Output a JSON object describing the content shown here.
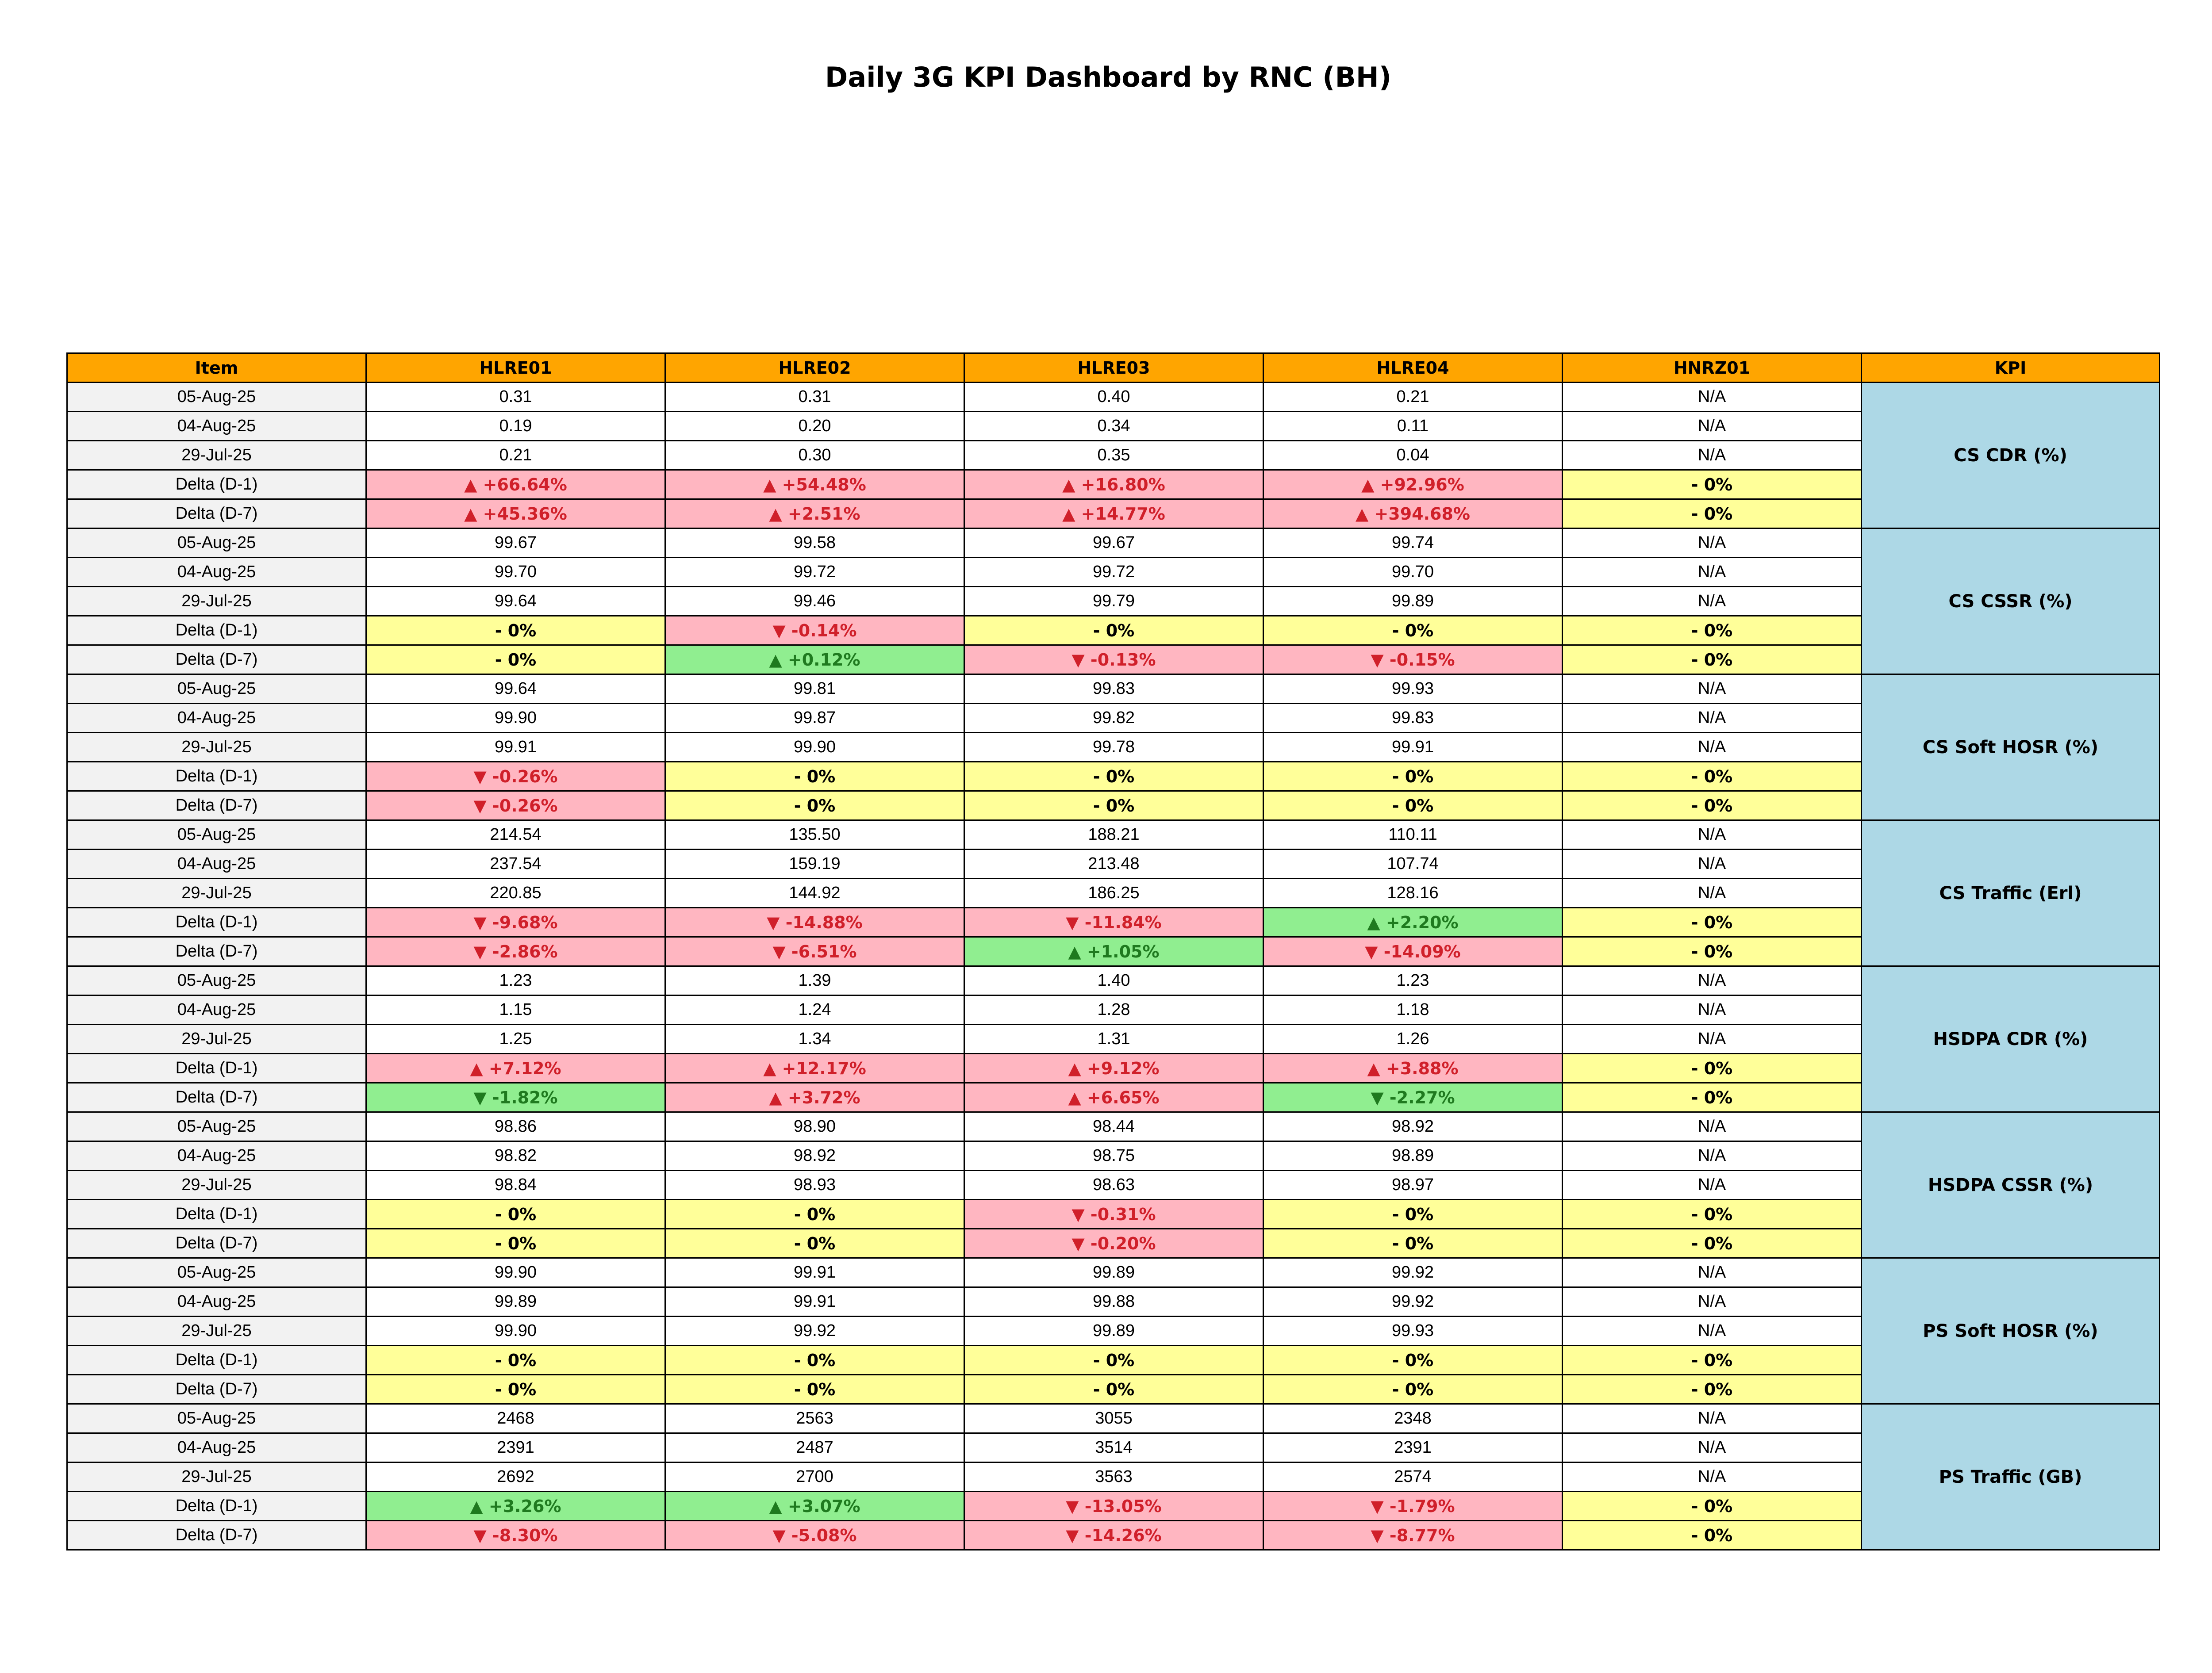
{
  "title": "Daily 3G KPI Dashboard by RNC (BH)",
  "headers": [
    "Item",
    "HLRE01",
    "HLRE02",
    "HLRE03",
    "HLRE04",
    "HNRZ01",
    "KPI"
  ],
  "colors": {
    "header": "#FFA500",
    "kpi": "#ADD8E6",
    "red_bg": "#FFB6C1",
    "green_bg": "#90EE90",
    "yellow_bg": "#FFFF99"
  },
  "groups": [
    {
      "kpi": "CS CDR (%)",
      "rows": [
        {
          "item": "05-Aug-25",
          "cells": [
            {
              "text": "0.31"
            },
            {
              "text": "0.31"
            },
            {
              "text": "0.40"
            },
            {
              "text": "0.21"
            },
            {
              "text": "N/A"
            }
          ]
        },
        {
          "item": "04-Aug-25",
          "cells": [
            {
              "text": "0.19"
            },
            {
              "text": "0.20"
            },
            {
              "text": "0.34"
            },
            {
              "text": "0.11"
            },
            {
              "text": "N/A"
            }
          ]
        },
        {
          "item": "29-Jul-25",
          "cells": [
            {
              "text": "0.21"
            },
            {
              "text": "0.30"
            },
            {
              "text": "0.35"
            },
            {
              "text": "0.04"
            },
            {
              "text": "N/A"
            }
          ]
        },
        {
          "item": "Delta (D-1)",
          "cells": [
            {
              "text": "▲ +66.64%",
              "status": "red"
            },
            {
              "text": "▲ +54.48%",
              "status": "red"
            },
            {
              "text": "▲ +16.80%",
              "status": "red"
            },
            {
              "text": "▲ +92.96%",
              "status": "red"
            },
            {
              "text": "- 0%",
              "status": "yellow"
            }
          ]
        },
        {
          "item": "Delta (D-7)",
          "cells": [
            {
              "text": "▲ +45.36%",
              "status": "red"
            },
            {
              "text": "▲ +2.51%",
              "status": "red"
            },
            {
              "text": "▲ +14.77%",
              "status": "red"
            },
            {
              "text": "▲ +394.68%",
              "status": "red"
            },
            {
              "text": "- 0%",
              "status": "yellow"
            }
          ]
        }
      ]
    },
    {
      "kpi": "CS CSSR (%)",
      "rows": [
        {
          "item": "05-Aug-25",
          "cells": [
            {
              "text": "99.67"
            },
            {
              "text": "99.58"
            },
            {
              "text": "99.67"
            },
            {
              "text": "99.74"
            },
            {
              "text": "N/A"
            }
          ]
        },
        {
          "item": "04-Aug-25",
          "cells": [
            {
              "text": "99.70"
            },
            {
              "text": "99.72"
            },
            {
              "text": "99.72"
            },
            {
              "text": "99.70"
            },
            {
              "text": "N/A"
            }
          ]
        },
        {
          "item": "29-Jul-25",
          "cells": [
            {
              "text": "99.64"
            },
            {
              "text": "99.46"
            },
            {
              "text": "99.79"
            },
            {
              "text": "99.89"
            },
            {
              "text": "N/A"
            }
          ]
        },
        {
          "item": "Delta (D-1)",
          "cells": [
            {
              "text": "- 0%",
              "status": "yellow"
            },
            {
              "text": "▼ -0.14%",
              "status": "red"
            },
            {
              "text": "- 0%",
              "status": "yellow"
            },
            {
              "text": "- 0%",
              "status": "yellow"
            },
            {
              "text": "- 0%",
              "status": "yellow"
            }
          ]
        },
        {
          "item": "Delta (D-7)",
          "cells": [
            {
              "text": "- 0%",
              "status": "yellow"
            },
            {
              "text": "▲ +0.12%",
              "status": "green"
            },
            {
              "text": "▼ -0.13%",
              "status": "red"
            },
            {
              "text": "▼ -0.15%",
              "status": "red"
            },
            {
              "text": "- 0%",
              "status": "yellow"
            }
          ]
        }
      ]
    },
    {
      "kpi": "CS Soft HOSR (%)",
      "rows": [
        {
          "item": "05-Aug-25",
          "cells": [
            {
              "text": "99.64"
            },
            {
              "text": "99.81"
            },
            {
              "text": "99.83"
            },
            {
              "text": "99.93"
            },
            {
              "text": "N/A"
            }
          ]
        },
        {
          "item": "04-Aug-25",
          "cells": [
            {
              "text": "99.90"
            },
            {
              "text": "99.87"
            },
            {
              "text": "99.82"
            },
            {
              "text": "99.83"
            },
            {
              "text": "N/A"
            }
          ]
        },
        {
          "item": "29-Jul-25",
          "cells": [
            {
              "text": "99.91"
            },
            {
              "text": "99.90"
            },
            {
              "text": "99.78"
            },
            {
              "text": "99.91"
            },
            {
              "text": "N/A"
            }
          ]
        },
        {
          "item": "Delta (D-1)",
          "cells": [
            {
              "text": "▼ -0.26%",
              "status": "red"
            },
            {
              "text": "- 0%",
              "status": "yellow"
            },
            {
              "text": "- 0%",
              "status": "yellow"
            },
            {
              "text": "- 0%",
              "status": "yellow"
            },
            {
              "text": "- 0%",
              "status": "yellow"
            }
          ]
        },
        {
          "item": "Delta (D-7)",
          "cells": [
            {
              "text": "▼ -0.26%",
              "status": "red"
            },
            {
              "text": "- 0%",
              "status": "yellow"
            },
            {
              "text": "- 0%",
              "status": "yellow"
            },
            {
              "text": "- 0%",
              "status": "yellow"
            },
            {
              "text": "- 0%",
              "status": "yellow"
            }
          ]
        }
      ]
    },
    {
      "kpi": "CS Traffic (Erl)",
      "rows": [
        {
          "item": "05-Aug-25",
          "cells": [
            {
              "text": "214.54"
            },
            {
              "text": "135.50"
            },
            {
              "text": "188.21"
            },
            {
              "text": "110.11"
            },
            {
              "text": "N/A"
            }
          ]
        },
        {
          "item": "04-Aug-25",
          "cells": [
            {
              "text": "237.54"
            },
            {
              "text": "159.19"
            },
            {
              "text": "213.48"
            },
            {
              "text": "107.74"
            },
            {
              "text": "N/A"
            }
          ]
        },
        {
          "item": "29-Jul-25",
          "cells": [
            {
              "text": "220.85"
            },
            {
              "text": "144.92"
            },
            {
              "text": "186.25"
            },
            {
              "text": "128.16"
            },
            {
              "text": "N/A"
            }
          ]
        },
        {
          "item": "Delta (D-1)",
          "cells": [
            {
              "text": "▼ -9.68%",
              "status": "red"
            },
            {
              "text": "▼ -14.88%",
              "status": "red"
            },
            {
              "text": "▼ -11.84%",
              "status": "red"
            },
            {
              "text": "▲ +2.20%",
              "status": "green"
            },
            {
              "text": "- 0%",
              "status": "yellow"
            }
          ]
        },
        {
          "item": "Delta (D-7)",
          "cells": [
            {
              "text": "▼ -2.86%",
              "status": "red"
            },
            {
              "text": "▼ -6.51%",
              "status": "red"
            },
            {
              "text": "▲ +1.05%",
              "status": "green"
            },
            {
              "text": "▼ -14.09%",
              "status": "red"
            },
            {
              "text": "- 0%",
              "status": "yellow"
            }
          ]
        }
      ]
    },
    {
      "kpi": "HSDPA CDR (%)",
      "rows": [
        {
          "item": "05-Aug-25",
          "cells": [
            {
              "text": "1.23"
            },
            {
              "text": "1.39"
            },
            {
              "text": "1.40"
            },
            {
              "text": "1.23"
            },
            {
              "text": "N/A"
            }
          ]
        },
        {
          "item": "04-Aug-25",
          "cells": [
            {
              "text": "1.15"
            },
            {
              "text": "1.24"
            },
            {
              "text": "1.28"
            },
            {
              "text": "1.18"
            },
            {
              "text": "N/A"
            }
          ]
        },
        {
          "item": "29-Jul-25",
          "cells": [
            {
              "text": "1.25"
            },
            {
              "text": "1.34"
            },
            {
              "text": "1.31"
            },
            {
              "text": "1.26"
            },
            {
              "text": "N/A"
            }
          ]
        },
        {
          "item": "Delta (D-1)",
          "cells": [
            {
              "text": "▲ +7.12%",
              "status": "red"
            },
            {
              "text": "▲ +12.17%",
              "status": "red"
            },
            {
              "text": "▲ +9.12%",
              "status": "red"
            },
            {
              "text": "▲ +3.88%",
              "status": "red"
            },
            {
              "text": "- 0%",
              "status": "yellow"
            }
          ]
        },
        {
          "item": "Delta (D-7)",
          "cells": [
            {
              "text": "▼ -1.82%",
              "status": "green"
            },
            {
              "text": "▲ +3.72%",
              "status": "red"
            },
            {
              "text": "▲ +6.65%",
              "status": "red"
            },
            {
              "text": "▼ -2.27%",
              "status": "green"
            },
            {
              "text": "- 0%",
              "status": "yellow"
            }
          ]
        }
      ]
    },
    {
      "kpi": "HSDPA CSSR (%)",
      "rows": [
        {
          "item": "05-Aug-25",
          "cells": [
            {
              "text": "98.86"
            },
            {
              "text": "98.90"
            },
            {
              "text": "98.44"
            },
            {
              "text": "98.92"
            },
            {
              "text": "N/A"
            }
          ]
        },
        {
          "item": "04-Aug-25",
          "cells": [
            {
              "text": "98.82"
            },
            {
              "text": "98.92"
            },
            {
              "text": "98.75"
            },
            {
              "text": "98.89"
            },
            {
              "text": "N/A"
            }
          ]
        },
        {
          "item": "29-Jul-25",
          "cells": [
            {
              "text": "98.84"
            },
            {
              "text": "98.93"
            },
            {
              "text": "98.63"
            },
            {
              "text": "98.97"
            },
            {
              "text": "N/A"
            }
          ]
        },
        {
          "item": "Delta (D-1)",
          "cells": [
            {
              "text": "- 0%",
              "status": "yellow"
            },
            {
              "text": "- 0%",
              "status": "yellow"
            },
            {
              "text": "▼ -0.31%",
              "status": "red"
            },
            {
              "text": "- 0%",
              "status": "yellow"
            },
            {
              "text": "- 0%",
              "status": "yellow"
            }
          ]
        },
        {
          "item": "Delta (D-7)",
          "cells": [
            {
              "text": "- 0%",
              "status": "yellow"
            },
            {
              "text": "- 0%",
              "status": "yellow"
            },
            {
              "text": "▼ -0.20%",
              "status": "red"
            },
            {
              "text": "- 0%",
              "status": "yellow"
            },
            {
              "text": "- 0%",
              "status": "yellow"
            }
          ]
        }
      ]
    },
    {
      "kpi": "PS Soft HOSR (%)",
      "rows": [
        {
          "item": "05-Aug-25",
          "cells": [
            {
              "text": "99.90"
            },
            {
              "text": "99.91"
            },
            {
              "text": "99.89"
            },
            {
              "text": "99.92"
            },
            {
              "text": "N/A"
            }
          ]
        },
        {
          "item": "04-Aug-25",
          "cells": [
            {
              "text": "99.89"
            },
            {
              "text": "99.91"
            },
            {
              "text": "99.88"
            },
            {
              "text": "99.92"
            },
            {
              "text": "N/A"
            }
          ]
        },
        {
          "item": "29-Jul-25",
          "cells": [
            {
              "text": "99.90"
            },
            {
              "text": "99.92"
            },
            {
              "text": "99.89"
            },
            {
              "text": "99.93"
            },
            {
              "text": "N/A"
            }
          ]
        },
        {
          "item": "Delta (D-1)",
          "cells": [
            {
              "text": "- 0%",
              "status": "yellow"
            },
            {
              "text": "- 0%",
              "status": "yellow"
            },
            {
              "text": "- 0%",
              "status": "yellow"
            },
            {
              "text": "- 0%",
              "status": "yellow"
            },
            {
              "text": "- 0%",
              "status": "yellow"
            }
          ]
        },
        {
          "item": "Delta (D-7)",
          "cells": [
            {
              "text": "- 0%",
              "status": "yellow"
            },
            {
              "text": "- 0%",
              "status": "yellow"
            },
            {
              "text": "- 0%",
              "status": "yellow"
            },
            {
              "text": "- 0%",
              "status": "yellow"
            },
            {
              "text": "- 0%",
              "status": "yellow"
            }
          ]
        }
      ]
    },
    {
      "kpi": "PS Traffic (GB)",
      "rows": [
        {
          "item": "05-Aug-25",
          "cells": [
            {
              "text": "2468"
            },
            {
              "text": "2563"
            },
            {
              "text": "3055"
            },
            {
              "text": "2348"
            },
            {
              "text": "N/A"
            }
          ]
        },
        {
          "item": "04-Aug-25",
          "cells": [
            {
              "text": "2391"
            },
            {
              "text": "2487"
            },
            {
              "text": "3514"
            },
            {
              "text": "2391"
            },
            {
              "text": "N/A"
            }
          ]
        },
        {
          "item": "29-Jul-25",
          "cells": [
            {
              "text": "2692"
            },
            {
              "text": "2700"
            },
            {
              "text": "3563"
            },
            {
              "text": "2574"
            },
            {
              "text": "N/A"
            }
          ]
        },
        {
          "item": "Delta (D-1)",
          "cells": [
            {
              "text": "▲ +3.26%",
              "status": "green"
            },
            {
              "text": "▲ +3.07%",
              "status": "green"
            },
            {
              "text": "▼ -13.05%",
              "status": "red"
            },
            {
              "text": "▼ -1.79%",
              "status": "red"
            },
            {
              "text": "- 0%",
              "status": "yellow"
            }
          ]
        },
        {
          "item": "Delta (D-7)",
          "cells": [
            {
              "text": "▼ -8.30%",
              "status": "red"
            },
            {
              "text": "▼ -5.08%",
              "status": "red"
            },
            {
              "text": "▼ -14.26%",
              "status": "red"
            },
            {
              "text": "▼ -8.77%",
              "status": "red"
            },
            {
              "text": "- 0%",
              "status": "yellow"
            }
          ]
        }
      ]
    }
  ]
}
